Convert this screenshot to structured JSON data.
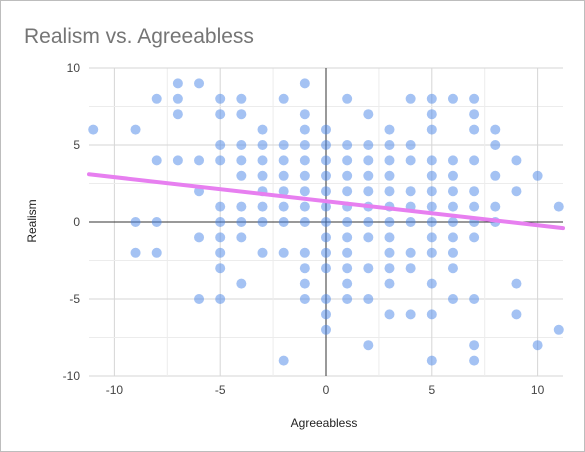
{
  "chart_data": {
    "type": "scatter",
    "title": "Realism vs. Agreeabless",
    "xlabel": "Agreeabless",
    "ylabel": "Realism",
    "xlim": [
      -11.2,
      11.2
    ],
    "ylim": [
      -10,
      10
    ],
    "xticks": [
      -10,
      -5,
      0,
      5,
      10
    ],
    "yticks": [
      -10,
      -5,
      0,
      5,
      10
    ],
    "xtick_labels": [
      "-10",
      "-5",
      "0",
      "5",
      "10"
    ],
    "ytick_labels": [
      "-10",
      "-5",
      "0",
      "5",
      "10"
    ],
    "grid": true,
    "legend": "none",
    "point_color": "#4a86e8",
    "trendline_color": "#e77ff0",
    "trendline": {
      "x": [
        -11.2,
        11.2
      ],
      "y": [
        3.1,
        -0.4
      ]
    },
    "points": [
      [
        -11,
        6
      ],
      [
        -9,
        6
      ],
      [
        -9,
        0
      ],
      [
        -9,
        -2
      ],
      [
        -8,
        8
      ],
      [
        -8,
        4
      ],
      [
        -8,
        0
      ],
      [
        -8,
        -2
      ],
      [
        -7,
        9
      ],
      [
        -7,
        8
      ],
      [
        -7,
        7
      ],
      [
        -7,
        4
      ],
      [
        -6,
        9
      ],
      [
        -6,
        4
      ],
      [
        -6,
        2
      ],
      [
        -6,
        -1
      ],
      [
        -6,
        -5
      ],
      [
        -5,
        8
      ],
      [
        -5,
        7
      ],
      [
        -5,
        5
      ],
      [
        -5,
        4
      ],
      [
        -5,
        1
      ],
      [
        -5,
        0
      ],
      [
        -5,
        -1
      ],
      [
        -5,
        -2
      ],
      [
        -5,
        -3
      ],
      [
        -5,
        -5
      ],
      [
        -4,
        8
      ],
      [
        -4,
        7
      ],
      [
        -4,
        5
      ],
      [
        -4,
        4
      ],
      [
        -4,
        3
      ],
      [
        -4,
        1
      ],
      [
        -4,
        0
      ],
      [
        -4,
        -1
      ],
      [
        -4,
        -4
      ],
      [
        -3,
        6
      ],
      [
        -3,
        5
      ],
      [
        -3,
        4
      ],
      [
        -3,
        3
      ],
      [
        -3,
        2
      ],
      [
        -3,
        1
      ],
      [
        -3,
        0
      ],
      [
        -3,
        -2
      ],
      [
        -2,
        8
      ],
      [
        -2,
        5
      ],
      [
        -2,
        4
      ],
      [
        -2,
        3
      ],
      [
        -2,
        2
      ],
      [
        -2,
        1
      ],
      [
        -2,
        0
      ],
      [
        -2,
        -2
      ],
      [
        -2,
        -9
      ],
      [
        -1,
        9
      ],
      [
        -1,
        7
      ],
      [
        -1,
        6
      ],
      [
        -1,
        5
      ],
      [
        -1,
        4
      ],
      [
        -1,
        3
      ],
      [
        -1,
        2
      ],
      [
        -1,
        1
      ],
      [
        -1,
        0
      ],
      [
        -1,
        -2
      ],
      [
        -1,
        -3
      ],
      [
        -1,
        -4
      ],
      [
        -1,
        -5
      ],
      [
        0,
        6
      ],
      [
        0,
        5
      ],
      [
        0,
        4
      ],
      [
        0,
        3
      ],
      [
        0,
        2
      ],
      [
        0,
        1
      ],
      [
        0,
        0
      ],
      [
        0,
        -1
      ],
      [
        0,
        -2
      ],
      [
        0,
        -3
      ],
      [
        0,
        -5
      ],
      [
        0,
        -6
      ],
      [
        0,
        -7
      ],
      [
        1,
        8
      ],
      [
        1,
        5
      ],
      [
        1,
        4
      ],
      [
        1,
        3
      ],
      [
        1,
        2
      ],
      [
        1,
        1
      ],
      [
        1,
        0
      ],
      [
        1,
        -1
      ],
      [
        1,
        -2
      ],
      [
        1,
        -3
      ],
      [
        1,
        -4
      ],
      [
        1,
        -5
      ],
      [
        2,
        7
      ],
      [
        2,
        5
      ],
      [
        2,
        4
      ],
      [
        2,
        3
      ],
      [
        2,
        2
      ],
      [
        2,
        1
      ],
      [
        2,
        0
      ],
      [
        2,
        -1
      ],
      [
        2,
        -3
      ],
      [
        2,
        -5
      ],
      [
        2,
        -8
      ],
      [
        3,
        6
      ],
      [
        3,
        5
      ],
      [
        3,
        4
      ],
      [
        3,
        3
      ],
      [
        3,
        2
      ],
      [
        3,
        1
      ],
      [
        3,
        0
      ],
      [
        3,
        -1
      ],
      [
        3,
        -2
      ],
      [
        3,
        -3
      ],
      [
        3,
        -4
      ],
      [
        3,
        -6
      ],
      [
        4,
        8
      ],
      [
        4,
        5
      ],
      [
        4,
        4
      ],
      [
        4,
        2
      ],
      [
        4,
        1
      ],
      [
        4,
        0
      ],
      [
        4,
        -2
      ],
      [
        4,
        -3
      ],
      [
        4,
        -6
      ],
      [
        5,
        8
      ],
      [
        5,
        7
      ],
      [
        5,
        6
      ],
      [
        5,
        4
      ],
      [
        5,
        3
      ],
      [
        5,
        2
      ],
      [
        5,
        1
      ],
      [
        5,
        0
      ],
      [
        5,
        -1
      ],
      [
        5,
        -2
      ],
      [
        5,
        -4
      ],
      [
        5,
        -6
      ],
      [
        5,
        -9
      ],
      [
        6,
        8
      ],
      [
        6,
        4
      ],
      [
        6,
        3
      ],
      [
        6,
        2
      ],
      [
        6,
        1
      ],
      [
        6,
        0
      ],
      [
        6,
        -1
      ],
      [
        6,
        -2
      ],
      [
        6,
        -3
      ],
      [
        6,
        -5
      ],
      [
        7,
        8
      ],
      [
        7,
        7
      ],
      [
        7,
        6
      ],
      [
        7,
        4
      ],
      [
        7,
        2
      ],
      [
        7,
        1
      ],
      [
        7,
        0
      ],
      [
        7,
        -1
      ],
      [
        7,
        -5
      ],
      [
        7,
        -8
      ],
      [
        7,
        -9
      ],
      [
        8,
        6
      ],
      [
        8,
        5
      ],
      [
        8,
        3
      ],
      [
        8,
        1
      ],
      [
        8,
        0
      ],
      [
        9,
        4
      ],
      [
        9,
        2
      ],
      [
        9,
        -4
      ],
      [
        9,
        -6
      ],
      [
        10,
        3
      ],
      [
        10,
        -8
      ],
      [
        11,
        1
      ],
      [
        11,
        -7
      ]
    ]
  }
}
